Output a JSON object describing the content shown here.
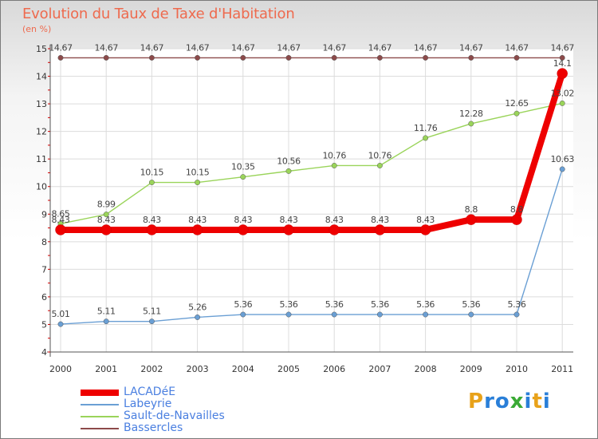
{
  "title": "Evolution du Taux de Taxe d'Habitation",
  "subtitle": "(en %)",
  "brand": {
    "letters": [
      "P",
      "r",
      "o",
      "x",
      "i",
      "t",
      "i"
    ],
    "colors": [
      "#e8a21a",
      "#2a7fd8",
      "#2a7fd8",
      "#3aaa35",
      "#2a7fd8",
      "#e8a21a",
      "#2a7fd8"
    ]
  },
  "chart_data": {
    "type": "line",
    "title": "Evolution du Taux de Taxe d'Habitation",
    "subtitle": "(en %)",
    "x": [
      "2000",
      "2001",
      "2002",
      "2003",
      "2004",
      "2005",
      "2006",
      "2007",
      "2008",
      "2009",
      "2010",
      "2011"
    ],
    "ylim": [
      4,
      15
    ],
    "yticks": [
      "4",
      "5",
      "6",
      "7",
      "8",
      "9",
      "10",
      "11",
      "12",
      "13",
      "14",
      "15"
    ],
    "grid": true,
    "legend_position": "bottom-left",
    "series": [
      {
        "name": "LACADéE",
        "color": "#ee0000",
        "weight": "heavy",
        "values": [
          8.43,
          8.43,
          8.43,
          8.43,
          8.43,
          8.43,
          8.43,
          8.43,
          8.43,
          8.8,
          8.8,
          14.1
        ],
        "labels": [
          "8.43",
          "8.43",
          "8.43",
          "8.43",
          "8.43",
          "8.43",
          "8.43",
          "8.43",
          "8.43",
          "8.8",
          "8.8",
          "14.1"
        ]
      },
      {
        "name": "Labeyrie",
        "color": "#6a9fd4",
        "weight": "light",
        "values": [
          5.01,
          5.11,
          5.11,
          5.26,
          5.36,
          5.36,
          5.36,
          5.36,
          5.36,
          5.36,
          5.36,
          10.63
        ],
        "labels": [
          "5.01",
          "5.11",
          "5.11",
          "5.26",
          "5.36",
          "5.36",
          "5.36",
          "5.36",
          "5.36",
          "5.36",
          "5.36",
          "10.63"
        ]
      },
      {
        "name": "Sault-de-Navailles",
        "color": "#9ad45a",
        "weight": "light",
        "values": [
          8.65,
          8.99,
          10.15,
          10.15,
          10.35,
          10.56,
          10.76,
          10.76,
          11.76,
          12.28,
          12.65,
          13.02
        ],
        "labels": [
          "8.65",
          "8.99",
          "10.15",
          "10.15",
          "10.35",
          "10.56",
          "10.76",
          "10.76",
          "11.76",
          "12.28",
          "12.65",
          "13.02"
        ]
      },
      {
        "name": "Bassercles",
        "color": "#8c4a4a",
        "weight": "light",
        "values": [
          14.67,
          14.67,
          14.67,
          14.67,
          14.67,
          14.67,
          14.67,
          14.67,
          14.67,
          14.67,
          14.67,
          14.67
        ],
        "labels": [
          "14.67",
          "14.67",
          "14.67",
          "14.67",
          "14.67",
          "14.67",
          "14.67",
          "14.67",
          "14.67",
          "14.67",
          "14.67",
          "14.67"
        ]
      }
    ]
  }
}
